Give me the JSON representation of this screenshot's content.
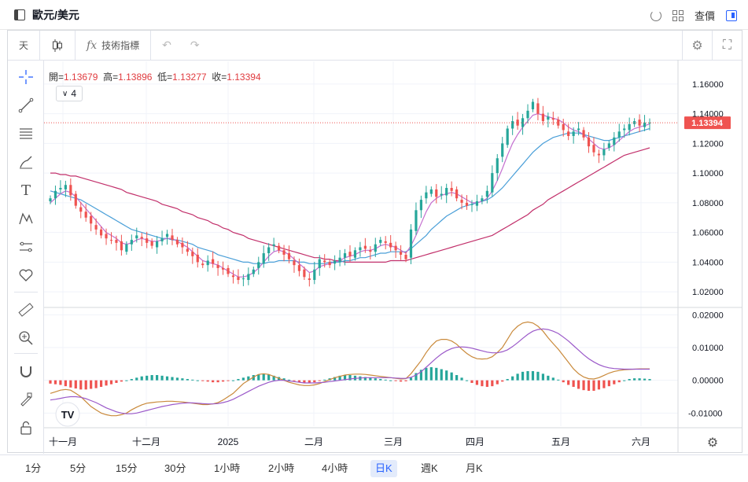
{
  "header": {
    "title": "歐元/美元",
    "actions": [
      "查價"
    ]
  },
  "toolbar": {
    "interval": "天",
    "indicators_label": "技術指標"
  },
  "ohlc": {
    "open_label": "開=",
    "open": "1.13679",
    "high_label": "高=",
    "high": "1.13896",
    "low_label": "低=",
    "low": "1.13277",
    "close_label": "收=",
    "close": "1.13394"
  },
  "indicator_count": "4",
  "price_axis": {
    "ticks": [
      "1.16000",
      "1.14000",
      "1.12000",
      "1.10000",
      "1.08000",
      "1.06000",
      "1.04000",
      "1.02000"
    ],
    "current_price": "1.13394"
  },
  "macd_axis": {
    "ticks": [
      "0.02000",
      "0.01000",
      "0.00000",
      "-0.01000"
    ]
  },
  "time_axis": {
    "labels": [
      "十一月",
      "十二月",
      "2025",
      "二月",
      "三月",
      "四月",
      "五月",
      "六月"
    ]
  },
  "timeframes": [
    "1分",
    "5分",
    "15分",
    "30分",
    "1小時",
    "2小時",
    "4小時",
    "日K",
    "週K",
    "月K"
  ],
  "active_timeframe": "日K",
  "colors": {
    "up": "#26a69a",
    "down": "#ef5350",
    "ma_short": "#c46fcf",
    "ma_mid": "#4a9fd8",
    "ma_long": "#c2306b",
    "accent": "#2962ff"
  },
  "chart_data": {
    "type": "candlestick",
    "ylim": [
      1.01,
      1.17
    ],
    "close_series": [
      1.083,
      1.088,
      1.09,
      1.092,
      1.085,
      1.078,
      1.074,
      1.07,
      1.066,
      1.062,
      1.058,
      1.056,
      1.055,
      1.053,
      1.048,
      1.052,
      1.055,
      1.058,
      1.056,
      1.053,
      1.051,
      1.054,
      1.056,
      1.059,
      1.055,
      1.052,
      1.05,
      1.047,
      1.044,
      1.04,
      1.038,
      1.041,
      1.039,
      1.036,
      1.035,
      1.032,
      1.03,
      1.028,
      1.029,
      1.032,
      1.035,
      1.04,
      1.046,
      1.05,
      1.052,
      1.048,
      1.045,
      1.042,
      1.038,
      1.034,
      1.03,
      1.028,
      1.035,
      1.042,
      1.04,
      1.038,
      1.041,
      1.043,
      1.046,
      1.044,
      1.048,
      1.05,
      1.049,
      1.047,
      1.052,
      1.055,
      1.053,
      1.05,
      1.048,
      1.045,
      1.042,
      1.062,
      1.075,
      1.082,
      1.087,
      1.089,
      1.084,
      1.086,
      1.09,
      1.088,
      1.083,
      1.08,
      1.078,
      1.079,
      1.081,
      1.083,
      1.088,
      1.1,
      1.11,
      1.12,
      1.13,
      1.135,
      1.132,
      1.137,
      1.142,
      1.148,
      1.14,
      1.135,
      1.138,
      1.136,
      1.132,
      1.129,
      1.125,
      1.128,
      1.13,
      1.124,
      1.118,
      1.114,
      1.112,
      1.116,
      1.12,
      1.124,
      1.128,
      1.13,
      1.133,
      1.135,
      1.132,
      1.134,
      1.134
    ],
    "ma_short_series": [
      1.08,
      1.083,
      1.086,
      1.088,
      1.087,
      1.084,
      1.08,
      1.076,
      1.072,
      1.068,
      1.064,
      1.06,
      1.058,
      1.056,
      1.053,
      1.052,
      1.053,
      1.055,
      1.056,
      1.055,
      1.054,
      1.054,
      1.055,
      1.056,
      1.056,
      1.054,
      1.052,
      1.05,
      1.047,
      1.044,
      1.041,
      1.04,
      1.039,
      1.038,
      1.036,
      1.034,
      1.032,
      1.03,
      1.03,
      1.031,
      1.033,
      1.036,
      1.04,
      1.044,
      1.047,
      1.048,
      1.047,
      1.045,
      1.042,
      1.039,
      1.036,
      1.033,
      1.034,
      1.037,
      1.038,
      1.039,
      1.04,
      1.041,
      1.043,
      1.044,
      1.045,
      1.047,
      1.048,
      1.048,
      1.049,
      1.051,
      1.052,
      1.051,
      1.05,
      1.048,
      1.046,
      1.051,
      1.058,
      1.066,
      1.074,
      1.08,
      1.083,
      1.085,
      1.086,
      1.087,
      1.086,
      1.084,
      1.082,
      1.08,
      1.08,
      1.081,
      1.083,
      1.088,
      1.095,
      1.103,
      1.112,
      1.12,
      1.126,
      1.131,
      1.135,
      1.139,
      1.14,
      1.139,
      1.138,
      1.137,
      1.136,
      1.134,
      1.131,
      1.129,
      1.128,
      1.126,
      1.123,
      1.12,
      1.117,
      1.116,
      1.117,
      1.119,
      1.122,
      1.125,
      1.128,
      1.13,
      1.131,
      1.132,
      1.133
    ],
    "ma_mid_series": [
      1.088,
      1.087,
      1.086,
      1.085,
      1.084,
      1.083,
      1.082,
      1.08,
      1.078,
      1.076,
      1.074,
      1.072,
      1.07,
      1.068,
      1.066,
      1.064,
      1.062,
      1.061,
      1.06,
      1.059,
      1.058,
      1.057,
      1.056,
      1.056,
      1.055,
      1.055,
      1.054,
      1.053,
      1.052,
      1.05,
      1.049,
      1.048,
      1.047,
      1.045,
      1.044,
      1.043,
      1.042,
      1.041,
      1.04,
      1.04,
      1.039,
      1.039,
      1.039,
      1.04,
      1.04,
      1.041,
      1.041,
      1.041,
      1.041,
      1.04,
      1.04,
      1.039,
      1.039,
      1.039,
      1.039,
      1.04,
      1.04,
      1.04,
      1.041,
      1.041,
      1.042,
      1.043,
      1.043,
      1.044,
      1.045,
      1.046,
      1.046,
      1.047,
      1.047,
      1.047,
      1.047,
      1.049,
      1.052,
      1.055,
      1.058,
      1.062,
      1.065,
      1.068,
      1.071,
      1.073,
      1.075,
      1.077,
      1.078,
      1.079,
      1.08,
      1.081,
      1.082,
      1.084,
      1.087,
      1.09,
      1.094,
      1.098,
      1.102,
      1.106,
      1.11,
      1.114,
      1.117,
      1.12,
      1.122,
      1.124,
      1.125,
      1.126,
      1.127,
      1.127,
      1.127,
      1.126,
      1.125,
      1.124,
      1.123,
      1.122,
      1.122,
      1.123,
      1.124,
      1.125,
      1.126,
      1.127,
      1.128,
      1.129,
      1.13
    ],
    "ma_long_series": [
      1.1,
      1.1,
      1.099,
      1.099,
      1.098,
      1.098,
      1.097,
      1.096,
      1.095,
      1.094,
      1.093,
      1.092,
      1.091,
      1.09,
      1.089,
      1.087,
      1.086,
      1.085,
      1.084,
      1.083,
      1.082,
      1.081,
      1.079,
      1.078,
      1.077,
      1.076,
      1.074,
      1.073,
      1.072,
      1.07,
      1.069,
      1.068,
      1.066,
      1.065,
      1.063,
      1.062,
      1.06,
      1.059,
      1.058,
      1.056,
      1.055,
      1.054,
      1.053,
      1.052,
      1.051,
      1.05,
      1.049,
      1.048,
      1.047,
      1.046,
      1.045,
      1.044,
      1.043,
      1.043,
      1.042,
      1.042,
      1.041,
      1.041,
      1.04,
      1.04,
      1.04,
      1.04,
      1.04,
      1.04,
      1.04,
      1.04,
      1.04,
      1.041,
      1.041,
      1.041,
      1.041,
      1.042,
      1.043,
      1.044,
      1.045,
      1.046,
      1.047,
      1.048,
      1.049,
      1.05,
      1.051,
      1.052,
      1.053,
      1.054,
      1.055,
      1.056,
      1.057,
      1.058,
      1.06,
      1.062,
      1.064,
      1.066,
      1.068,
      1.07,
      1.072,
      1.075,
      1.077,
      1.079,
      1.082,
      1.084,
      1.086,
      1.088,
      1.09,
      1.092,
      1.094,
      1.096,
      1.098,
      1.1,
      1.102,
      1.104,
      1.106,
      1.108,
      1.11,
      1.112,
      1.113,
      1.114,
      1.115,
      1.116,
      1.117
    ],
    "macd_ylim": [
      -0.014,
      0.022
    ],
    "macd_hist": [
      -0.001,
      -0.0012,
      -0.0014,
      -0.0018,
      -0.0022,
      -0.0025,
      -0.0028,
      -0.0028,
      -0.0026,
      -0.0024,
      -0.002,
      -0.0016,
      -0.0012,
      -0.0008,
      -0.0004,
      0,
      0.0004,
      0.0008,
      0.0012,
      0.0014,
      0.0016,
      0.0016,
      0.0014,
      0.0012,
      0.001,
      0.0008,
      0.0006,
      0.0004,
      0.0002,
      0,
      -0.0002,
      -0.0004,
      -0.0006,
      -0.0006,
      -0.0004,
      -0.0002,
      0,
      0.0004,
      0.0008,
      0.0012,
      0.0016,
      0.0018,
      0.002,
      0.0018,
      0.0014,
      0.001,
      0.0006,
      0.0002,
      -0.0002,
      -0.0006,
      -0.0008,
      -0.0008,
      -0.0006,
      -0.0002,
      0.0002,
      0.0006,
      0.001,
      0.0014,
      0.0016,
      0.0016,
      0.0014,
      0.0012,
      0.001,
      0.0008,
      0.0006,
      0.0004,
      0.0002,
      0,
      -0.0002,
      -0.0004,
      -0.0003,
      0.0008,
      0.0022,
      0.0032,
      0.0038,
      0.004,
      0.0038,
      0.0034,
      0.003,
      0.0024,
      0.0016,
      0.0008,
      0,
      -0.0008,
      -0.0014,
      -0.0018,
      -0.002,
      -0.0018,
      -0.0012,
      -0.0004,
      0.0004,
      0.0012,
      0.002,
      0.0026,
      0.0028,
      0.0028,
      0.0026,
      0.002,
      0.0014,
      0.0008,
      0.0002,
      -0.0006,
      -0.0014,
      -0.002,
      -0.0026,
      -0.003,
      -0.0032,
      -0.0032,
      -0.0028,
      -0.0024,
      -0.0018,
      -0.0012,
      -0.0006,
      0,
      0.0004,
      0.0006,
      0.0006,
      0.0005,
      0.0004
    ],
    "macd_line": [
      -0.004,
      -0.0035,
      -0.003,
      -0.0028,
      -0.003,
      -0.004,
      -0.005,
      -0.0065,
      -0.008,
      -0.009,
      -0.01,
      -0.0105,
      -0.0108,
      -0.0108,
      -0.0105,
      -0.01,
      -0.009,
      -0.0082,
      -0.0075,
      -0.007,
      -0.0068,
      -0.0066,
      -0.0065,
      -0.0064,
      -0.0064,
      -0.0065,
      -0.0066,
      -0.0068,
      -0.007,
      -0.0072,
      -0.0074,
      -0.0074,
      -0.0072,
      -0.0068,
      -0.006,
      -0.005,
      -0.004,
      -0.0025,
      -0.001,
      0,
      0.001,
      0.0018,
      0.002,
      0.0018,
      0.0012,
      0.0006,
      0,
      -0.0006,
      -0.001,
      -0.0014,
      -0.0016,
      -0.0016,
      -0.0014,
      -0.001,
      -0.0004,
      0.0002,
      0.0008,
      0.0012,
      0.0016,
      0.0018,
      0.0019,
      0.0019,
      0.0018,
      0.0016,
      0.0014,
      0.0012,
      0.001,
      0.0008,
      0.0006,
      0.0004,
      0.0005,
      0.002,
      0.004,
      0.006,
      0.0085,
      0.0105,
      0.012,
      0.0125,
      0.0125,
      0.012,
      0.011,
      0.0095,
      0.0082,
      0.0072,
      0.0066,
      0.0065,
      0.0066,
      0.0072,
      0.0085,
      0.01,
      0.0125,
      0.015,
      0.0165,
      0.0175,
      0.0178,
      0.0175,
      0.0165,
      0.015,
      0.013,
      0.0112,
      0.0095,
      0.0075,
      0.0055,
      0.0035,
      0.002,
      0.001,
      0.0005,
      0.0004,
      0.0008,
      0.0015,
      0.0022,
      0.0027,
      0.003,
      0.0032,
      0.0033,
      0.0034,
      0.0035,
      0.0035,
      0.0035
    ],
    "signal_line": [
      -0.006,
      -0.0058,
      -0.0055,
      -0.0052,
      -0.005,
      -0.005,
      -0.0052,
      -0.0056,
      -0.0062,
      -0.0068,
      -0.0076,
      -0.0084,
      -0.009,
      -0.0096,
      -0.01,
      -0.0102,
      -0.0102,
      -0.01,
      -0.0096,
      -0.0092,
      -0.0088,
      -0.0084,
      -0.008,
      -0.0077,
      -0.0074,
      -0.0072,
      -0.007,
      -0.0069,
      -0.0069,
      -0.007,
      -0.0071,
      -0.0072,
      -0.0072,
      -0.0071,
      -0.0068,
      -0.0064,
      -0.0058,
      -0.005,
      -0.0042,
      -0.0034,
      -0.0026,
      -0.0018,
      -0.0012,
      -0.0006,
      -0.0002,
      0,
      0,
      -0.0002,
      -0.0004,
      -0.0006,
      -0.0008,
      -0.0008,
      -0.0008,
      -0.0007,
      -0.0006,
      -0.0004,
      -0.0002,
      0,
      0.0002,
      0.0004,
      0.0006,
      0.0007,
      0.0008,
      0.0008,
      0.0008,
      0.0008,
      0.0008,
      0.0008,
      0.0007,
      0.0006,
      0.0006,
      0.0009,
      0.0016,
      0.0026,
      0.004,
      0.0054,
      0.0068,
      0.008,
      0.009,
      0.0097,
      0.0101,
      0.0102,
      0.0101,
      0.0098,
      0.0094,
      0.009,
      0.0086,
      0.0084,
      0.0084,
      0.0087,
      0.0093,
      0.0103,
      0.0115,
      0.0128,
      0.014,
      0.015,
      0.0155,
      0.0157,
      0.0155,
      0.015,
      0.0143,
      0.0132,
      0.012,
      0.0106,
      0.0092,
      0.0078,
      0.0066,
      0.0056,
      0.0048,
      0.0042,
      0.0038,
      0.0036,
      0.0035,
      0.0034,
      0.0034,
      0.0034,
      0.0034,
      0.0034,
      0.0034
    ]
  }
}
